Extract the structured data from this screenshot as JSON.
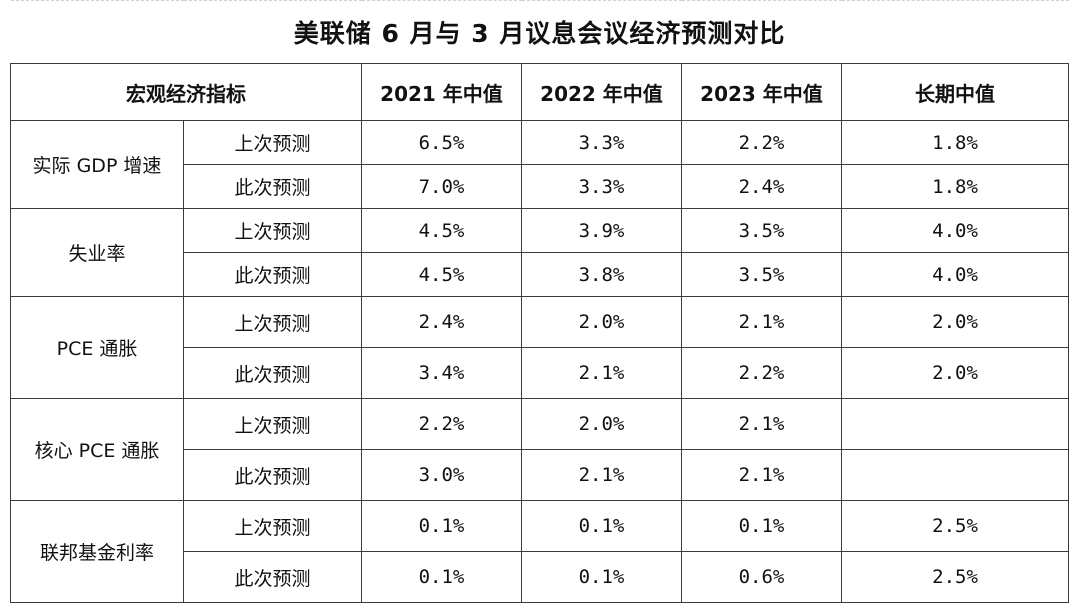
{
  "title": "美联储 6 月与 3 月议息会议经济预测对比",
  "headers": {
    "indicator": "宏观经济指标",
    "y2021": "2021 年中值",
    "y2022": "2022 年中值",
    "y2023": "2023 年中值",
    "longrun": "长期中值"
  },
  "groups": [
    {
      "name": "实际 GDP 增速",
      "rows": [
        {
          "label": "上次预测",
          "v2021": "6.5%",
          "v2022": "3.3%",
          "v2023": "2.2%",
          "vlong": "1.8%"
        },
        {
          "label": "此次预测",
          "v2021": "7.0%",
          "v2022": "3.3%",
          "v2023": "2.4%",
          "vlong": "1.8%"
        }
      ]
    },
    {
      "name": "失业率",
      "rows": [
        {
          "label": "上次预测",
          "v2021": "4.5%",
          "v2022": "3.9%",
          "v2023": "3.5%",
          "vlong": "4.0%"
        },
        {
          "label": "此次预测",
          "v2021": "4.5%",
          "v2022": "3.8%",
          "v2023": "3.5%",
          "vlong": "4.0%"
        }
      ]
    },
    {
      "name": "PCE 通胀",
      "rows": [
        {
          "label": "上次预测",
          "v2021": "2.4%",
          "v2022": "2.0%",
          "v2023": "2.1%",
          "vlong": "2.0%"
        },
        {
          "label": "此次预测",
          "v2021": "3.4%",
          "v2022": "2.1%",
          "v2023": "2.2%",
          "vlong": "2.0%"
        }
      ]
    },
    {
      "name": "核心 PCE 通胀",
      "rows": [
        {
          "label": "上次预测",
          "v2021": "2.2%",
          "v2022": "2.0%",
          "v2023": "2.1%",
          "vlong": ""
        },
        {
          "label": "此次预测",
          "v2021": "3.0%",
          "v2022": "2.1%",
          "v2023": "2.1%",
          "vlong": ""
        }
      ]
    },
    {
      "name": "联邦基金利率",
      "rows": [
        {
          "label": "上次预测",
          "v2021": "0.1%",
          "v2022": "0.1%",
          "v2023": "0.1%",
          "vlong": "2.5%"
        },
        {
          "label": "此次预测",
          "v2021": "0.1%",
          "v2022": "0.1%",
          "v2023": "0.6%",
          "vlong": "2.5%"
        }
      ]
    }
  ]
}
